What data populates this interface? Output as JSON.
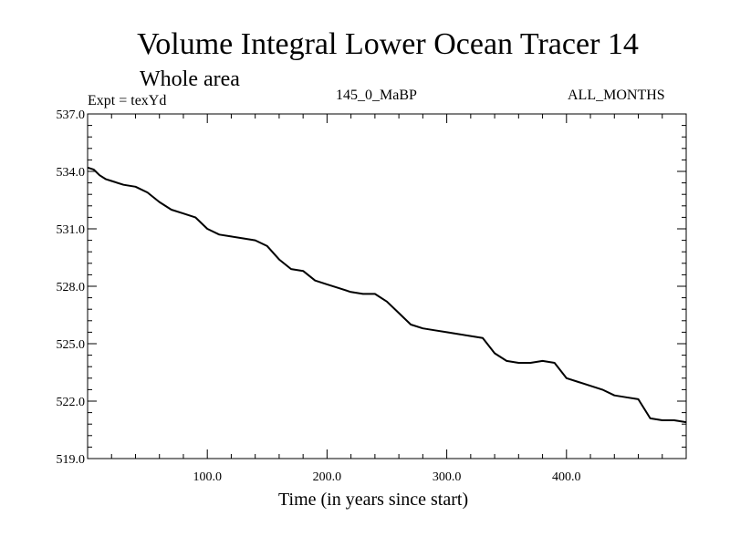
{
  "chart_data": {
    "type": "line",
    "title": "Volume Integral Lower Ocean Tracer 14",
    "subtitle": "Whole area",
    "left_note": "Expt = texYd",
    "center_note": "145_0_MaBP",
    "right_note": "ALL_MONTHS",
    "xlabel": "Time (in years since start)",
    "ylabel": "",
    "xlim": [
      0,
      500
    ],
    "ylim": [
      519.0,
      537.0
    ],
    "x_ticks": [
      100,
      200,
      300,
      400
    ],
    "x_tick_labels": [
      "100.0",
      "200.0",
      "300.0",
      "400.0"
    ],
    "y_ticks": [
      519,
      522,
      525,
      528,
      531,
      534,
      537
    ],
    "y_tick_labels": [
      "519.0",
      "522.0",
      "525.0",
      "528.0",
      "531.0",
      "534.0",
      "537.0"
    ],
    "grid": false,
    "series": [
      {
        "x": [
          0,
          5,
          10,
          15,
          20,
          30,
          40,
          50,
          60,
          70,
          80,
          90,
          100,
          110,
          120,
          130,
          140,
          150,
          160,
          170,
          180,
          190,
          200,
          210,
          220,
          230,
          240,
          250,
          260,
          270,
          280,
          290,
          300,
          310,
          320,
          330,
          340,
          350,
          360,
          370,
          380,
          390,
          400,
          410,
          420,
          430,
          440,
          450,
          460,
          470,
          480,
          490,
          500
        ],
        "y": [
          534.2,
          534.1,
          533.8,
          533.6,
          533.5,
          533.3,
          533.2,
          532.9,
          532.4,
          532.0,
          531.8,
          531.6,
          531.0,
          530.7,
          530.6,
          530.5,
          530.4,
          530.1,
          529.4,
          528.9,
          528.8,
          528.3,
          528.1,
          527.9,
          527.7,
          527.6,
          527.6,
          527.2,
          526.6,
          526.0,
          525.8,
          525.7,
          525.6,
          525.5,
          525.4,
          525.3,
          524.5,
          524.1,
          524.0,
          524.0,
          524.1,
          524.0,
          523.2,
          523.0,
          522.8,
          522.6,
          522.3,
          522.2,
          522.1,
          521.1,
          521.0,
          521.0,
          520.9
        ]
      }
    ]
  }
}
